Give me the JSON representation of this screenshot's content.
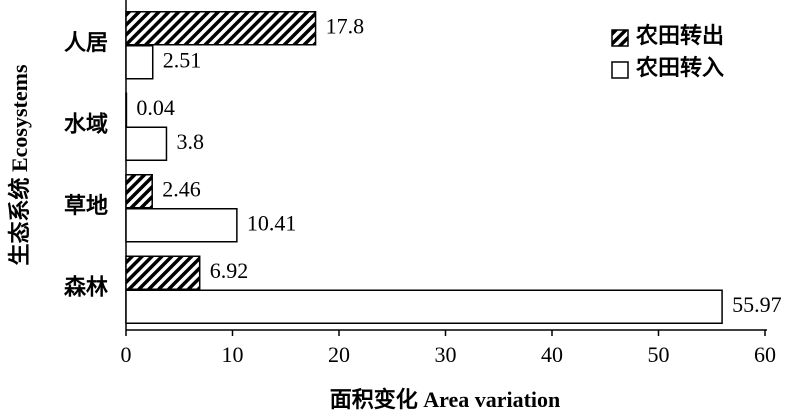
{
  "chart_data": {
    "type": "hbar",
    "xlabel": "面积变化 Area variation",
    "ylabel": "生态系统 Ecosystems",
    "categories": [
      "人居",
      "水域",
      "草地",
      "森林"
    ],
    "series": [
      {
        "name": "农田转出",
        "color": "#000000",
        "hatch": true,
        "values": [
          17.8,
          0.04,
          2.46,
          6.92
        ]
      },
      {
        "name": "农田转入",
        "color": "#ffffff",
        "hatch": false,
        "values": [
          2.51,
          3.8,
          10.41,
          55.97
        ]
      }
    ],
    "xlim": [
      0,
      60
    ],
    "xticks": [
      0,
      10,
      20,
      30,
      40,
      50,
      60
    ],
    "legend": "upper right"
  }
}
